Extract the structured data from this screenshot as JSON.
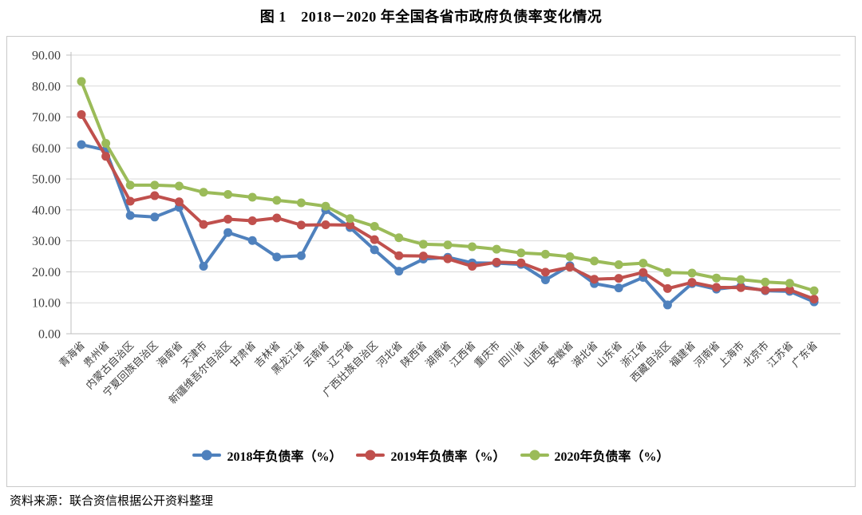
{
  "figure_title": "图 1　2018－2020 年全国各省市政府负债率变化情况",
  "source_note": "资料来源：联合资信根据公开资料整理",
  "chart_data": {
    "type": "line",
    "title": "图 1　2018－2020 年全国各省市政府负债率变化情况",
    "categories": [
      "青海省",
      "贵州省",
      "内蒙古自治区",
      "宁夏回族自治区",
      "海南省",
      "天津市",
      "新疆维吾尔自治区",
      "甘肃省",
      "吉林省",
      "黑龙江省",
      "云南省",
      "辽宁省",
      "广西壮族自治区",
      "河北省",
      "陕西省",
      "湖南省",
      "江西省",
      "重庆市",
      "四川省",
      "山西省",
      "安徽省",
      "湖北省",
      "山东省",
      "浙江省",
      "西藏自治区",
      "福建省",
      "河南省",
      "上海市",
      "北京市",
      "江苏省",
      "广东省"
    ],
    "series": [
      {
        "name": "2018年负债率（%）",
        "color": "#4F81BD",
        "values": [
          61.1,
          59.3,
          38.2,
          37.7,
          40.8,
          21.8,
          32.7,
          30.1,
          24.8,
          25.2,
          40.0,
          34.3,
          27.1,
          20.2,
          24.1,
          24.7,
          22.9,
          22.8,
          22.4,
          17.4,
          22.0,
          16.2,
          14.8,
          18.2,
          9.3,
          16.2,
          14.4,
          15.3,
          13.9,
          13.7,
          10.3
        ]
      },
      {
        "name": "2019年负债率（%）",
        "color": "#C0504D",
        "values": [
          70.8,
          57.3,
          42.8,
          44.6,
          42.6,
          35.3,
          37.0,
          36.5,
          37.4,
          35.1,
          35.2,
          35.1,
          30.4,
          25.2,
          25.1,
          24.2,
          21.8,
          23.1,
          22.9,
          19.9,
          21.5,
          17.6,
          17.9,
          19.8,
          14.6,
          16.6,
          15.0,
          14.9,
          14.1,
          14.2,
          11.2
        ]
      },
      {
        "name": "2020年负债率（%）",
        "color": "#9BBB59",
        "values": [
          81.5,
          61.5,
          48.0,
          48.0,
          47.7,
          45.7,
          45.0,
          44.1,
          43.1,
          42.3,
          41.2,
          37.2,
          34.7,
          31.0,
          28.9,
          28.7,
          28.1,
          27.3,
          26.1,
          25.7,
          24.9,
          23.5,
          22.3,
          22.8,
          19.8,
          19.6,
          18.0,
          17.5,
          16.7,
          16.3,
          13.9
        ]
      }
    ],
    "xlabel": "",
    "ylabel": "",
    "ylim": [
      0,
      90
    ],
    "ytick_step": 10,
    "ytick_labels": [
      "0.00",
      "10.00",
      "20.00",
      "30.00",
      "40.00",
      "50.00",
      "60.00",
      "70.00",
      "80.00",
      "90.00"
    ],
    "grid": true,
    "legend_position": "bottom",
    "marker": "circle",
    "gridline_color": "#D9D9D9",
    "axis_color": "#BFBFBF",
    "tick_text_color": "#404040",
    "plot_border_color": "#C9C9C9"
  }
}
